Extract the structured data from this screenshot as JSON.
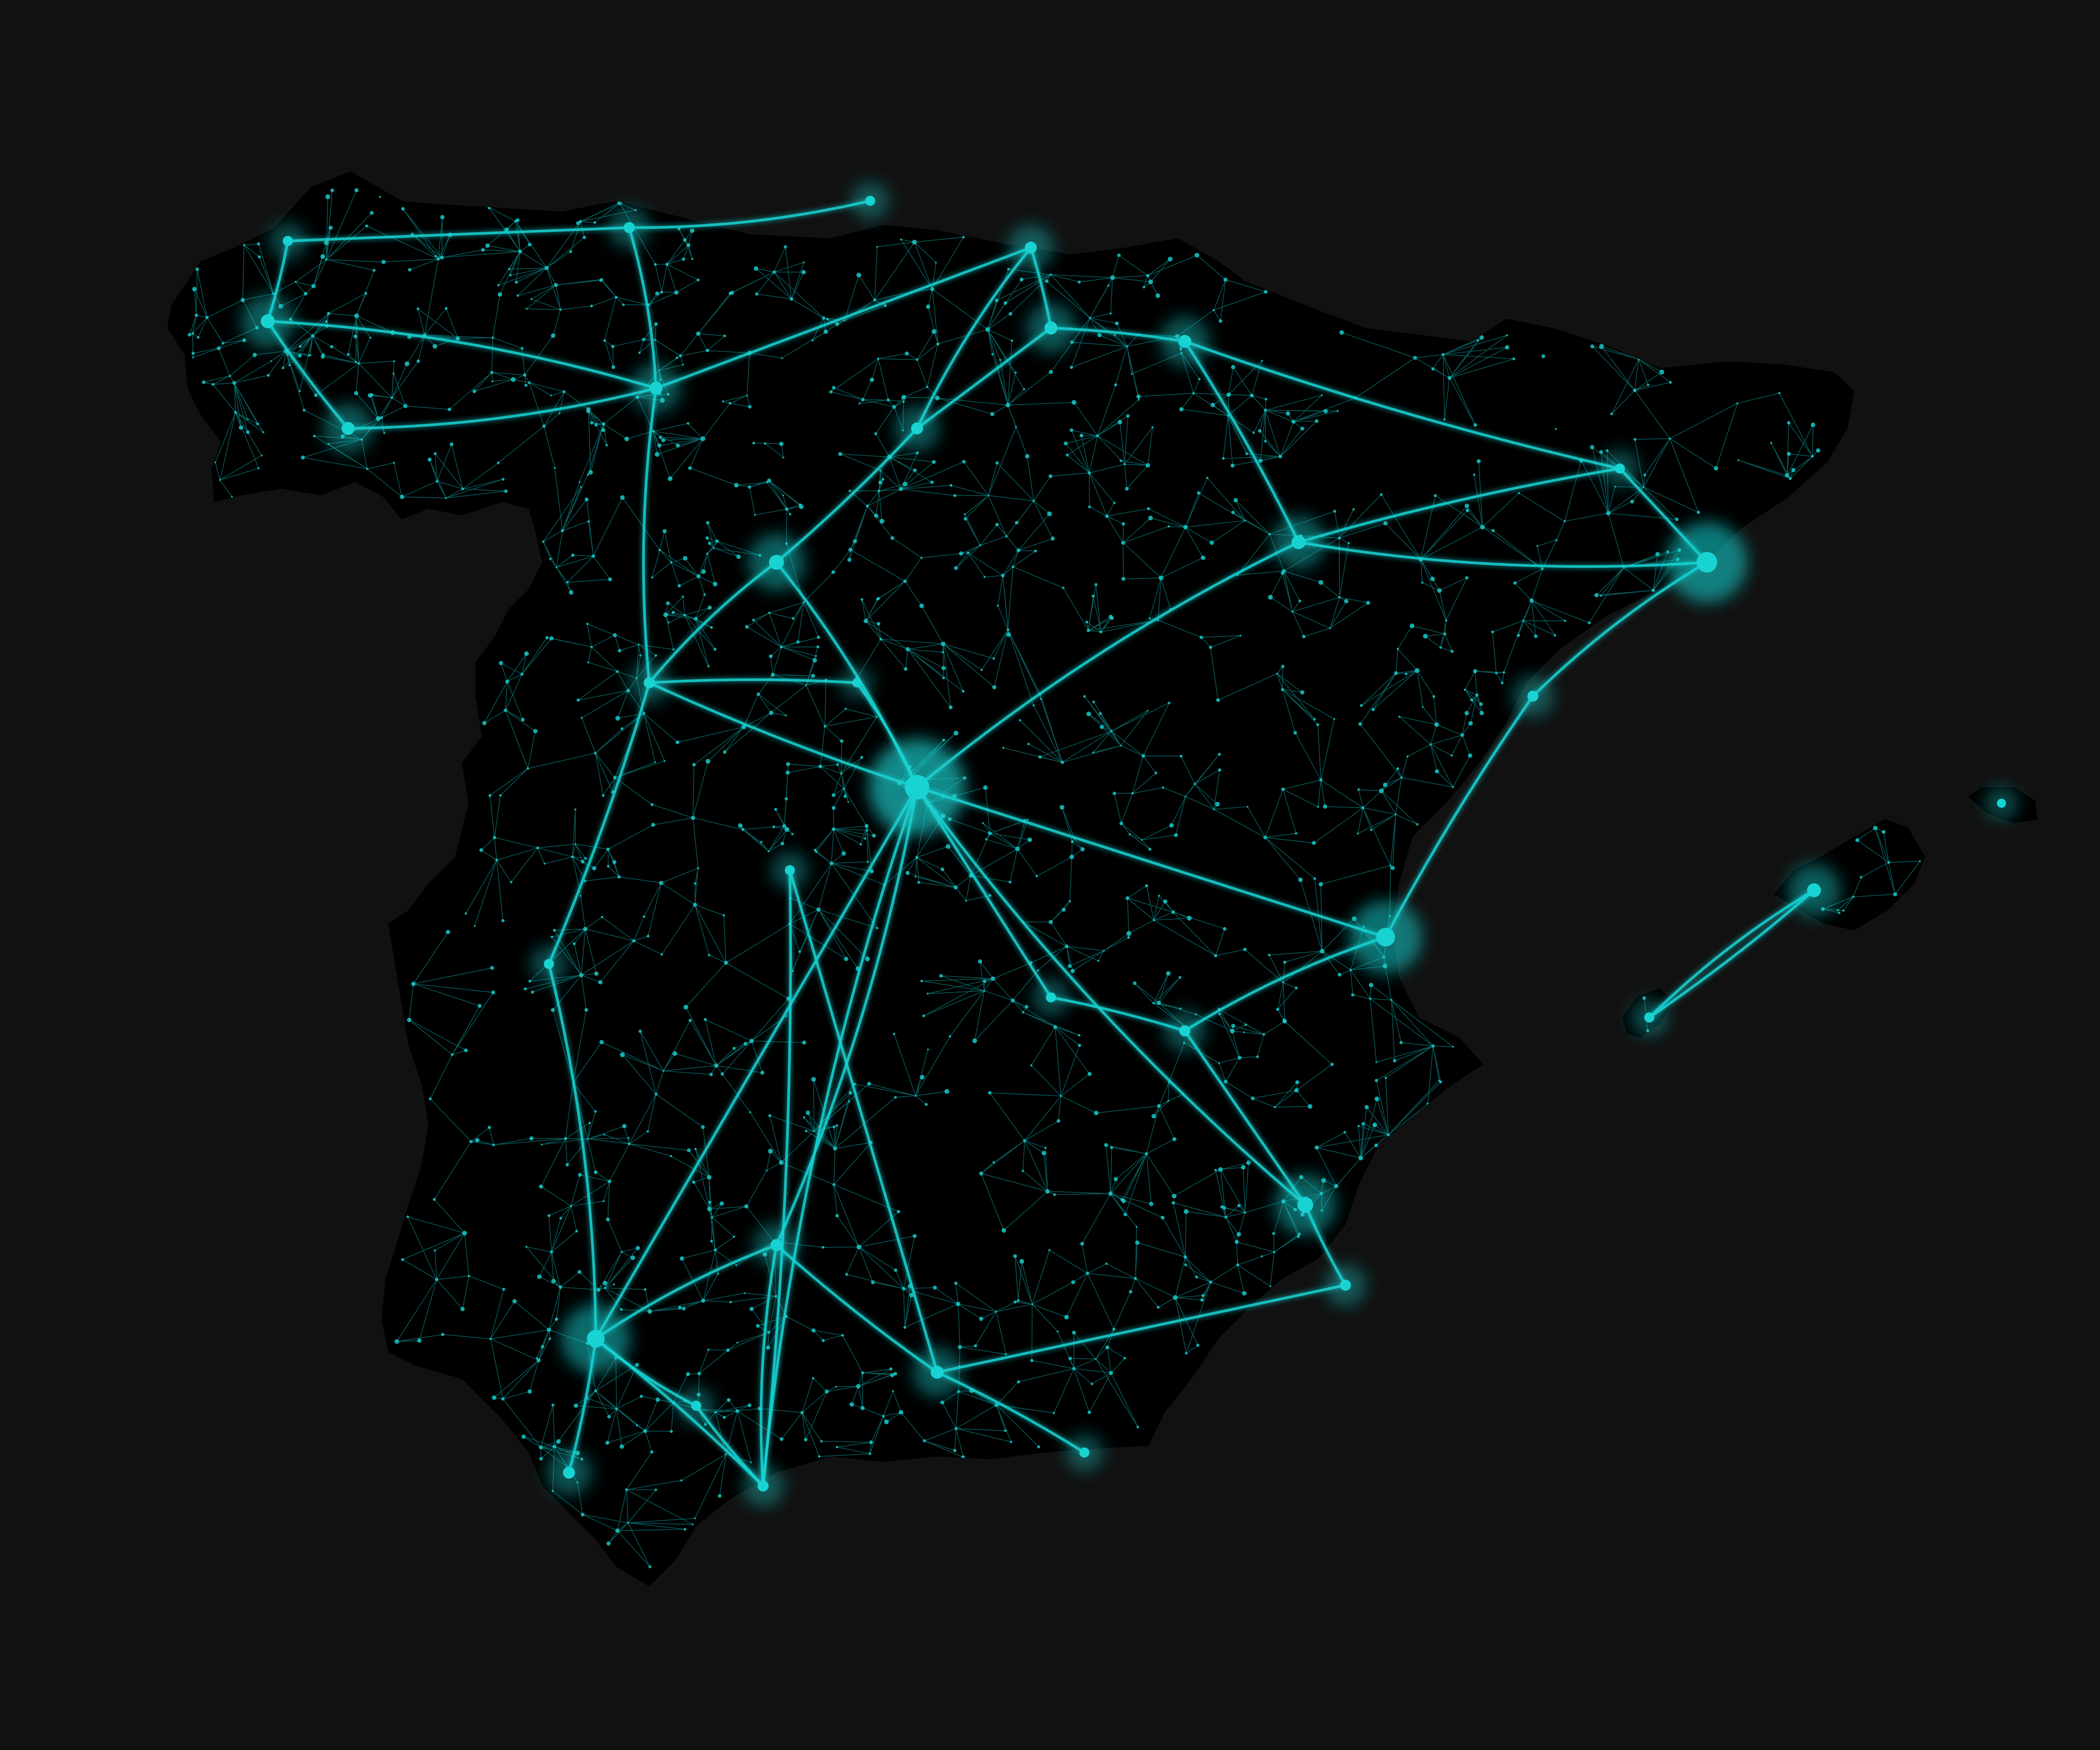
{
  "map": {
    "colors": {
      "background": "#111111",
      "land": "#000000",
      "network": "#19d3d3",
      "network_glow": "#0fa8a8"
    },
    "shown_features": [
      "road-network",
      "urban-hubs",
      "mainland-spain",
      "balearic-islands"
    ]
  }
}
